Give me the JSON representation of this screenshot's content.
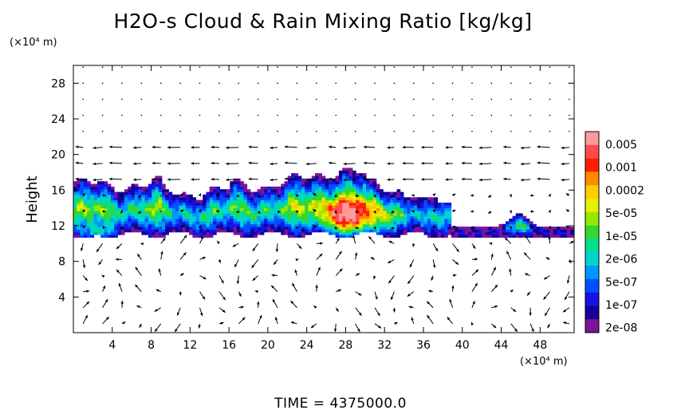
{
  "chart_data": {
    "type": "heatmap",
    "title": "H2O-s Cloud & Rain Mixing Ratio [kg/kg]",
    "ylabel": "Height",
    "y_unit": "(×10⁴ m)",
    "x_unit": "(×10⁴ m)",
    "xlim": [
      0,
      51.5
    ],
    "ylim": [
      0,
      30
    ],
    "x_ticks": [
      4,
      8,
      12,
      16,
      20,
      24,
      28,
      32,
      36,
      40,
      44,
      48
    ],
    "y_ticks": [
      4,
      8,
      12,
      16,
      20,
      24,
      28
    ],
    "colorbar": {
      "labels": [
        "0.005",
        "0.001",
        "0.0002",
        "5e-05",
        "1e-05",
        "2e-06",
        "5e-07",
        "1e-07",
        "2e-08"
      ],
      "colors": [
        "#ff9a9a",
        "#ff4b4b",
        "#ff1e00",
        "#ff8c00",
        "#ffcc00",
        "#e6f000",
        "#9be600",
        "#33d633",
        "#00e08c",
        "#00d2d2",
        "#0096ff",
        "#0050ff",
        "#1414e6",
        "#140096",
        "#7a149a"
      ]
    },
    "overlay": "wind vectors",
    "footer": "TIME  =  4375000.0"
  }
}
